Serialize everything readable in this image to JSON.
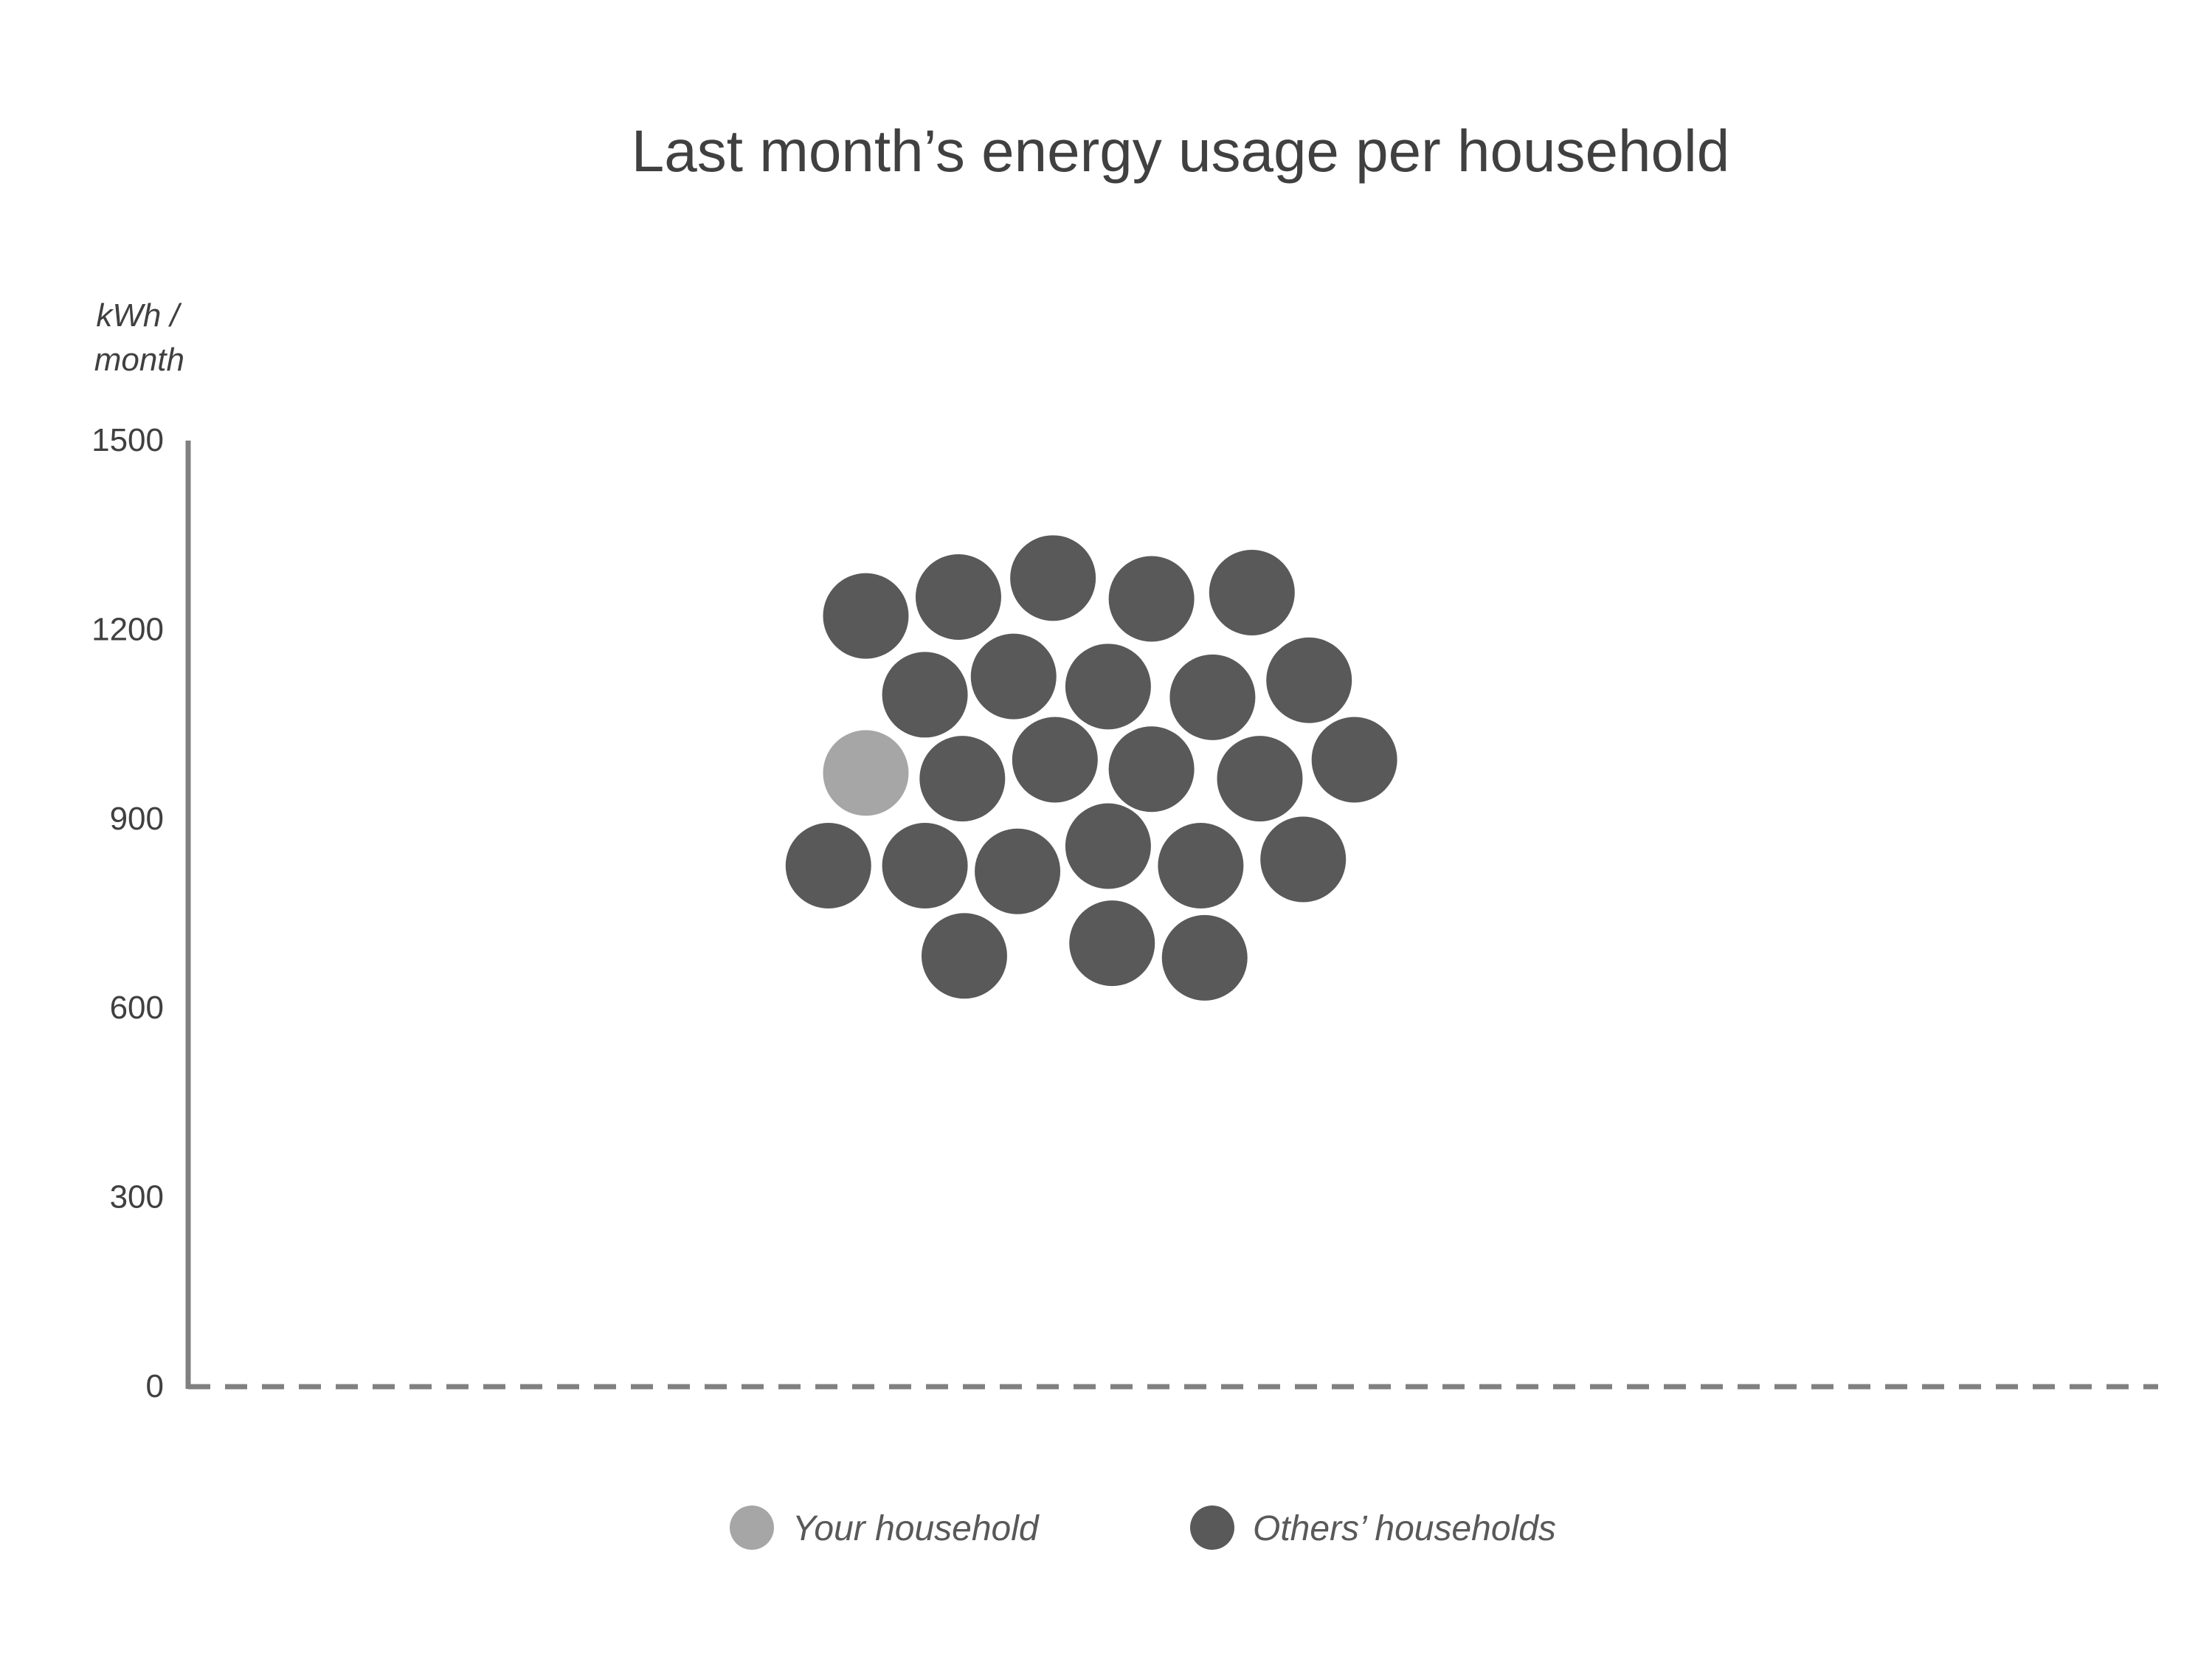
{
  "chart_data": {
    "type": "scatter",
    "title": "Last month’s energy usage per household",
    "ylabel": "kWh / month",
    "ylabel_lines": [
      "kWh /",
      "month"
    ],
    "ylim": [
      0,
      1500
    ],
    "yticks": [
      {
        "value": 0,
        "label": "0"
      },
      {
        "value": 300,
        "label": "300"
      },
      {
        "value": 600,
        "label": "600"
      },
      {
        "value": 900,
        "label": "900"
      },
      {
        "value": 1200,
        "label": "1200"
      },
      {
        "value": 1500,
        "label": "1500"
      }
    ],
    "xlim": [
      0,
      100
    ],
    "x_axis_style": "dashed",
    "grid": false,
    "legend_position": "bottom-center",
    "series": [
      {
        "name": "Your household",
        "color": "#a6a6a6",
        "points": [
          {
            "x": 34.4,
            "y": 973
          }
        ]
      },
      {
        "name": "Others’ households",
        "color": "#595959",
        "points": [
          {
            "x": 34.4,
            "y": 1222
          },
          {
            "x": 39.1,
            "y": 1252
          },
          {
            "x": 43.9,
            "y": 1282
          },
          {
            "x": 48.9,
            "y": 1249
          },
          {
            "x": 54.0,
            "y": 1259
          },
          {
            "x": 37.4,
            "y": 1097
          },
          {
            "x": 41.9,
            "y": 1126
          },
          {
            "x": 46.7,
            "y": 1110
          },
          {
            "x": 52.0,
            "y": 1093
          },
          {
            "x": 56.9,
            "y": 1120
          },
          {
            "x": 39.3,
            "y": 964
          },
          {
            "x": 44.0,
            "y": 994
          },
          {
            "x": 48.9,
            "y": 979
          },
          {
            "x": 54.4,
            "y": 964
          },
          {
            "x": 59.2,
            "y": 994
          },
          {
            "x": 32.5,
            "y": 826
          },
          {
            "x": 37.4,
            "y": 826
          },
          {
            "x": 42.1,
            "y": 817
          },
          {
            "x": 46.7,
            "y": 857
          },
          {
            "x": 51.4,
            "y": 826
          },
          {
            "x": 56.6,
            "y": 836
          },
          {
            "x": 39.4,
            "y": 683
          },
          {
            "x": 46.9,
            "y": 703
          },
          {
            "x": 51.6,
            "y": 680
          }
        ]
      }
    ]
  }
}
